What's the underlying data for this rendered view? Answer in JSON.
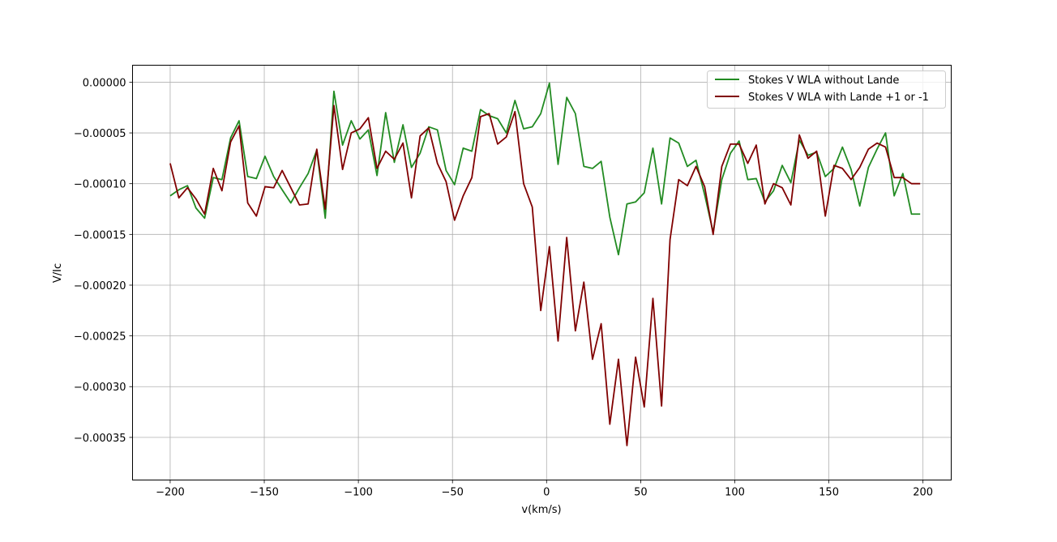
{
  "chart_data": {
    "type": "line",
    "title": "",
    "xlabel": "v(km/s)",
    "ylabel": "V/Ic",
    "xlim": [
      -220,
      215
    ],
    "ylim": [
      -0.000392,
      1.67e-05
    ],
    "grid": true,
    "legend_position": "top-right",
    "x_ticks": [
      -200,
      -150,
      -100,
      -50,
      0,
      50,
      100,
      150,
      200
    ],
    "x_tick_labels": [
      "−200",
      "−150",
      "−100",
      "−50",
      "0",
      "50",
      "100",
      "150",
      "200"
    ],
    "y_ticks": [
      0,
      -5e-05,
      -0.0001,
      -0.00015,
      -0.0002,
      -0.00025,
      -0.0003,
      -0.00035
    ],
    "y_tick_labels": [
      "0.00000",
      "−0.00005",
      "−0.00010",
      "−0.00015",
      "−0.00020",
      "−0.00025",
      "−0.00030",
      "−0.00035"
    ],
    "x": [
      -200.0,
      -195.4,
      -190.8,
      -186.3,
      -181.7,
      -177.1,
      -172.5,
      -167.9,
      -163.4,
      -158.8,
      -154.2,
      -149.6,
      -145.0,
      -140.5,
      -135.9,
      -131.3,
      -126.7,
      -122.1,
      -117.6,
      -113.0,
      -108.4,
      -103.8,
      -99.2,
      -94.7,
      -90.1,
      -85.5,
      -80.9,
      -76.3,
      -71.8,
      -67.2,
      -62.6,
      -58.0,
      -53.4,
      -48.9,
      -44.3,
      -39.7,
      -35.1,
      -30.5,
      -26.0,
      -21.4,
      -16.8,
      -12.2,
      -7.6,
      -3.1,
      1.5,
      6.1,
      10.7,
      15.3,
      19.8,
      24.4,
      29.0,
      33.6,
      38.2,
      42.7,
      47.3,
      51.9,
      56.5,
      61.1,
      65.6,
      70.2,
      74.8,
      79.4,
      84.0,
      88.5,
      93.1,
      97.7,
      102.3,
      106.9,
      111.4,
      116.0,
      120.6,
      125.2,
      129.8,
      134.3,
      138.9,
      143.5,
      148.1,
      152.7,
      157.2,
      161.8,
      166.4,
      171.0,
      175.6,
      180.1,
      184.7,
      189.3,
      193.9,
      198.5
    ],
    "series": [
      {
        "name": "Stokes V WLA without Lande",
        "color": "#228b22",
        "values": [
          -0.000112,
          -0.000106,
          -0.000102,
          -0.000124,
          -0.000134,
          -9.4e-05,
          -9.6e-05,
          -5.5e-05,
          -3.8e-05,
          -9.3e-05,
          -9.5e-05,
          -7.3e-05,
          -9.3e-05,
          -0.000106,
          -0.000119,
          -0.000104,
          -9e-05,
          -6.7e-05,
          -0.000134,
          -9e-06,
          -6.2e-05,
          -3.8e-05,
          -5.6e-05,
          -4.7e-05,
          -9.2e-05,
          -3e-05,
          -7.9e-05,
          -4.2e-05,
          -8.4e-05,
          -7e-05,
          -4.4e-05,
          -4.7e-05,
          -8.7e-05,
          -0.000101,
          -6.5e-05,
          -6.8e-05,
          -2.7e-05,
          -3.3e-05,
          -3.6e-05,
          -5e-05,
          -1.8e-05,
          -4.6e-05,
          -4.4e-05,
          -3.1e-05,
          -1e-06,
          -8.1e-05,
          -1.5e-05,
          -3.1e-05,
          -8.3e-05,
          -8.5e-05,
          -7.8e-05,
          -0.000133,
          -0.00017,
          -0.00012,
          -0.000118,
          -0.000109,
          -6.5e-05,
          -0.00012,
          -5.5e-05,
          -6e-05,
          -8.3e-05,
          -7.7e-05,
          -0.000111,
          -0.000148,
          -9.6e-05,
          -7e-05,
          -5.8e-05,
          -9.6e-05,
          -9.5e-05,
          -0.000118,
          -0.000107,
          -8.2e-05,
          -9.9e-05,
          -5.7e-05,
          -7.2e-05,
          -6.9e-05,
          -9.3e-05,
          -8.5e-05,
          -6.4e-05,
          -8.6e-05,
          -0.000122,
          -8.4e-05,
          -6.6e-05,
          -5e-05,
          -0.000112,
          -9e-05,
          -0.00013,
          -0.00013
        ],
        "plot_points": 87
      },
      {
        "name": "Stokes V WLA with Lande +1 or -1",
        "color": "#800000",
        "values": [
          -8e-05,
          -0.000114,
          -0.000104,
          -0.000115,
          -0.00013,
          -8.5e-05,
          -0.000107,
          -5.9e-05,
          -4.3e-05,
          -0.000119,
          -0.000132,
          -0.000103,
          -0.000104,
          -8.7e-05,
          -0.000104,
          -0.000121,
          -0.00012,
          -6.6e-05,
          -0.000125,
          -2.3e-05,
          -8.6e-05,
          -5e-05,
          -4.6e-05,
          -3.5e-05,
          -8.5e-05,
          -6.8e-05,
          -7.6e-05,
          -6e-05,
          -0.000114,
          -5.3e-05,
          -4.5e-05,
          -8e-05,
          -9.8e-05,
          -0.000136,
          -0.000112,
          -9.4e-05,
          -3.4e-05,
          -3.1e-05,
          -6.1e-05,
          -5.4e-05,
          -2.9e-05,
          -0.0001,
          -0.000123,
          -0.000225,
          -0.000162,
          -0.000255,
          -0.000153,
          -0.000245,
          -0.000197,
          -0.000273,
          -0.000238,
          -0.000337,
          -0.000273,
          -0.000358,
          -0.000271,
          -0.00032,
          -0.000213,
          -0.000319,
          -0.000155,
          -9.6e-05,
          -0.000102,
          -8.3e-05,
          -0.000103,
          -0.00015,
          -8.3e-05,
          -6.1e-05,
          -6.1e-05,
          -8e-05,
          -6.2e-05,
          -0.00012,
          -0.0001,
          -0.000104,
          -0.000121,
          -5.2e-05,
          -7.5e-05,
          -6.8e-05,
          -0.000132,
          -8.2e-05,
          -8.5e-05,
          -9.6e-05,
          -8.4e-05,
          -6.6e-05,
          -6e-05,
          -6.4e-05,
          -9.4e-05,
          -9.4e-05,
          -0.0001,
          -0.0001
        ],
        "plot_points": 87
      }
    ]
  }
}
